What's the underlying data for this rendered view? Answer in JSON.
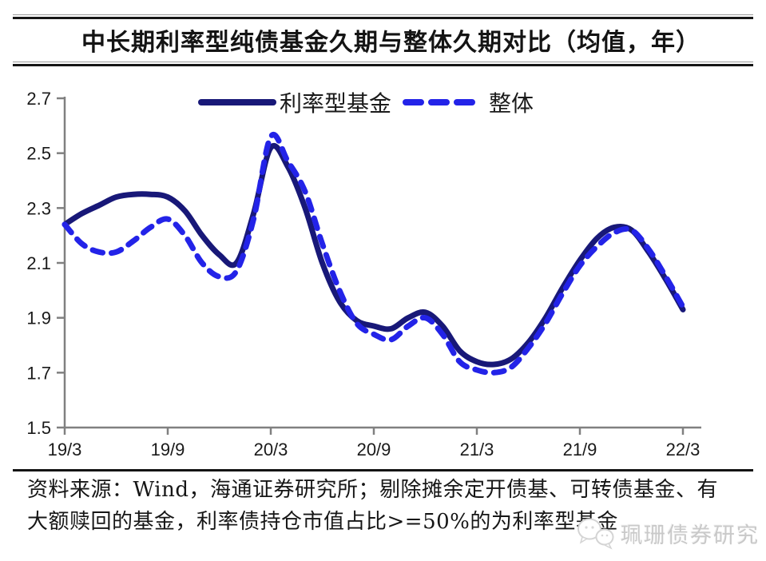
{
  "title": "中长期利率型纯债基金久期与整体久期对比（均值，年）",
  "legend": {
    "items": [
      {
        "label": "利率型基金",
        "style": "solid",
        "color": "#181878"
      },
      {
        "label": "整体",
        "style": "dashed",
        "color": "#2323e8"
      }
    ]
  },
  "chart_data": {
    "type": "line",
    "title": "中长期利率型纯债基金久期与整体久期对比（均值，年）",
    "xlabel": "",
    "ylabel": "",
    "x_start": "2019/3",
    "x_end": "2022/3",
    "frequency": "monthly",
    "x_tick_labels": [
      "19/3",
      "19/9",
      "20/3",
      "20/9",
      "21/3",
      "21/9",
      "22/3"
    ],
    "yticks": [
      1.5,
      1.7,
      1.9,
      2.1,
      2.3,
      2.5,
      2.7
    ],
    "ylim": [
      1.5,
      2.7
    ],
    "grid": false,
    "legend_position": "top-center",
    "series": [
      {
        "name": "利率型基金",
        "style": "solid",
        "color": "#181878",
        "values": [
          2.24,
          2.28,
          2.31,
          2.34,
          2.35,
          2.35,
          2.34,
          2.29,
          2.2,
          2.13,
          2.1,
          2.28,
          2.52,
          2.45,
          2.3,
          2.1,
          1.96,
          1.89,
          1.87,
          1.86,
          1.9,
          1.92,
          1.87,
          1.78,
          1.74,
          1.73,
          1.75,
          1.81,
          1.9,
          2.01,
          2.11,
          2.19,
          2.23,
          2.22,
          2.14,
          2.04,
          1.93
        ]
      },
      {
        "name": "整体",
        "style": "dashed",
        "color": "#2323e8",
        "values": [
          2.24,
          2.17,
          2.14,
          2.14,
          2.18,
          2.23,
          2.26,
          2.2,
          2.1,
          2.05,
          2.07,
          2.26,
          2.56,
          2.47,
          2.36,
          2.17,
          2.0,
          1.88,
          1.84,
          1.82,
          1.87,
          1.9,
          1.84,
          1.74,
          1.71,
          1.7,
          1.72,
          1.79,
          1.88,
          1.99,
          2.09,
          2.16,
          2.21,
          2.22,
          2.15,
          2.05,
          1.94
        ]
      }
    ]
  },
  "footer": {
    "source_note_line1": "资料来源：Wind，海通证券研究所；剔除摊余定开债基、可转债基金、有",
    "source_note_line2": "大额赎回的基金，利率债持仓市值占比>=50%的为利率型基金"
  },
  "watermark": {
    "text": "珮珊债券研究",
    "logo": "speech-bubbles-icon"
  },
  "colors": {
    "solid_line": "#181878",
    "dashed_line": "#2323e8",
    "axis": "#808080",
    "title_text": "#141414",
    "watermark_text": "#c9c9c9"
  }
}
